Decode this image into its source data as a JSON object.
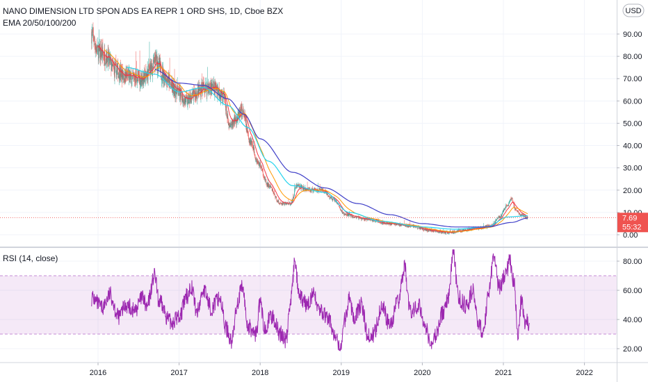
{
  "chart_data": [
    {
      "type": "candlestick",
      "title": "NANO DIMENSION LTD SPON ADS EA REPR 1 ORD SHS, 1D, Cboe BZX",
      "subtitle": "EMA 20/50/100/200",
      "currency": "USD",
      "x_ticks": [
        "2016",
        "2017",
        "2018",
        "2019",
        "2020",
        "2021",
        "2022"
      ],
      "y_ticks": [
        "0.00",
        "10.00",
        "20.00",
        "30.00",
        "40.00",
        "50.00",
        "60.00",
        "70.00",
        "80.00",
        "90.00"
      ],
      "ylim": [
        -3,
        100
      ],
      "last_price": "7.69",
      "countdown": "55:32",
      "colors": {
        "up": "#26a69a",
        "down": "#ef5350",
        "ema_fast": "#f23645",
        "ema_mid": "#ff9800",
        "ema_slow": "#22d3ee",
        "ema_200": "#3f3fc8",
        "price_line": "#ef5350"
      },
      "close_anchors": [
        {
          "x": 2015.92,
          "y": 90
        },
        {
          "x": 2016.0,
          "y": 82
        },
        {
          "x": 2016.1,
          "y": 80
        },
        {
          "x": 2016.2,
          "y": 74
        },
        {
          "x": 2016.35,
          "y": 71
        },
        {
          "x": 2016.55,
          "y": 70
        },
        {
          "x": 2016.65,
          "y": 74
        },
        {
          "x": 2016.72,
          "y": 78
        },
        {
          "x": 2016.8,
          "y": 72
        },
        {
          "x": 2016.95,
          "y": 65
        },
        {
          "x": 2017.1,
          "y": 60
        },
        {
          "x": 2017.2,
          "y": 63
        },
        {
          "x": 2017.3,
          "y": 66
        },
        {
          "x": 2017.45,
          "y": 66
        },
        {
          "x": 2017.55,
          "y": 62
        },
        {
          "x": 2017.62,
          "y": 48
        },
        {
          "x": 2017.7,
          "y": 52
        },
        {
          "x": 2017.78,
          "y": 55
        },
        {
          "x": 2017.88,
          "y": 42
        },
        {
          "x": 2017.98,
          "y": 32
        },
        {
          "x": 2018.1,
          "y": 22
        },
        {
          "x": 2018.25,
          "y": 14
        },
        {
          "x": 2018.38,
          "y": 14
        },
        {
          "x": 2018.45,
          "y": 22
        },
        {
          "x": 2018.6,
          "y": 20
        },
        {
          "x": 2018.75,
          "y": 20
        },
        {
          "x": 2018.9,
          "y": 16
        },
        {
          "x": 2019.05,
          "y": 9
        },
        {
          "x": 2019.3,
          "y": 7
        },
        {
          "x": 2019.6,
          "y": 5
        },
        {
          "x": 2019.85,
          "y": 4
        },
        {
          "x": 2020.1,
          "y": 2
        },
        {
          "x": 2020.3,
          "y": 1
        },
        {
          "x": 2020.5,
          "y": 2
        },
        {
          "x": 2020.7,
          "y": 3
        },
        {
          "x": 2020.85,
          "y": 4
        },
        {
          "x": 2020.95,
          "y": 8
        },
        {
          "x": 2021.05,
          "y": 13
        },
        {
          "x": 2021.1,
          "y": 16
        },
        {
          "x": 2021.15,
          "y": 11
        },
        {
          "x": 2021.22,
          "y": 9
        },
        {
          "x": 2021.3,
          "y": 7.69
        }
      ],
      "ema_200_anchors": [
        {
          "x": 2016.7,
          "y": 74
        },
        {
          "x": 2017.0,
          "y": 68
        },
        {
          "x": 2017.3,
          "y": 67
        },
        {
          "x": 2017.6,
          "y": 61
        },
        {
          "x": 2017.8,
          "y": 54
        },
        {
          "x": 2018.0,
          "y": 43
        },
        {
          "x": 2018.4,
          "y": 28
        },
        {
          "x": 2018.8,
          "y": 21
        },
        {
          "x": 2019.2,
          "y": 14
        },
        {
          "x": 2019.6,
          "y": 9
        },
        {
          "x": 2020.0,
          "y": 5
        },
        {
          "x": 2020.4,
          "y": 3.5
        },
        {
          "x": 2020.8,
          "y": 3.5
        },
        {
          "x": 2021.1,
          "y": 5.5
        },
        {
          "x": 2021.3,
          "y": 7.5
        }
      ],
      "ema_100_anchors": [
        {
          "x": 2016.35,
          "y": 75
        },
        {
          "x": 2016.7,
          "y": 72
        },
        {
          "x": 2017.0,
          "y": 64
        },
        {
          "x": 2017.3,
          "y": 66
        },
        {
          "x": 2017.6,
          "y": 58
        },
        {
          "x": 2017.85,
          "y": 48
        },
        {
          "x": 2018.1,
          "y": 33
        },
        {
          "x": 2018.4,
          "y": 22
        },
        {
          "x": 2018.8,
          "y": 19
        },
        {
          "x": 2019.1,
          "y": 10
        },
        {
          "x": 2019.5,
          "y": 6
        },
        {
          "x": 2020.0,
          "y": 3.5
        },
        {
          "x": 2020.4,
          "y": 2.5
        },
        {
          "x": 2020.8,
          "y": 3.5
        },
        {
          "x": 2021.05,
          "y": 8
        },
        {
          "x": 2021.3,
          "y": 8.5
        }
      ]
    },
    {
      "type": "line",
      "title": "RSI (14, close)",
      "y_ticks": [
        "20.00",
        "40.00",
        "60.00",
        "80.00"
      ],
      "ylim": [
        14,
        88
      ],
      "band": [
        30,
        70
      ],
      "color": "#9c27b0",
      "band_color": "#9c27b0",
      "rsi_anchors": [
        {
          "x": 2015.92,
          "y": 55
        },
        {
          "x": 2016.05,
          "y": 48
        },
        {
          "x": 2016.15,
          "y": 57
        },
        {
          "x": 2016.25,
          "y": 42
        },
        {
          "x": 2016.35,
          "y": 50
        },
        {
          "x": 2016.45,
          "y": 46
        },
        {
          "x": 2016.55,
          "y": 55
        },
        {
          "x": 2016.6,
          "y": 48
        },
        {
          "x": 2016.7,
          "y": 70
        },
        {
          "x": 2016.75,
          "y": 52
        },
        {
          "x": 2016.9,
          "y": 38
        },
        {
          "x": 2017.0,
          "y": 42
        },
        {
          "x": 2017.1,
          "y": 56
        },
        {
          "x": 2017.15,
          "y": 63
        },
        {
          "x": 2017.22,
          "y": 45
        },
        {
          "x": 2017.3,
          "y": 60
        },
        {
          "x": 2017.4,
          "y": 48
        },
        {
          "x": 2017.5,
          "y": 55
        },
        {
          "x": 2017.58,
          "y": 34
        },
        {
          "x": 2017.65,
          "y": 25
        },
        {
          "x": 2017.72,
          "y": 52
        },
        {
          "x": 2017.78,
          "y": 62
        },
        {
          "x": 2017.85,
          "y": 35
        },
        {
          "x": 2017.95,
          "y": 30
        },
        {
          "x": 2018.0,
          "y": 52
        },
        {
          "x": 2018.05,
          "y": 35
        },
        {
          "x": 2018.15,
          "y": 42
        },
        {
          "x": 2018.25,
          "y": 30
        },
        {
          "x": 2018.32,
          "y": 26
        },
        {
          "x": 2018.38,
          "y": 55
        },
        {
          "x": 2018.43,
          "y": 80
        },
        {
          "x": 2018.48,
          "y": 55
        },
        {
          "x": 2018.58,
          "y": 50
        },
        {
          "x": 2018.65,
          "y": 57
        },
        {
          "x": 2018.75,
          "y": 45
        },
        {
          "x": 2018.85,
          "y": 40
        },
        {
          "x": 2018.92,
          "y": 28
        },
        {
          "x": 2018.98,
          "y": 20
        },
        {
          "x": 2019.05,
          "y": 40
        },
        {
          "x": 2019.1,
          "y": 55
        },
        {
          "x": 2019.15,
          "y": 42
        },
        {
          "x": 2019.25,
          "y": 50
        },
        {
          "x": 2019.33,
          "y": 28
        },
        {
          "x": 2019.4,
          "y": 30
        },
        {
          "x": 2019.5,
          "y": 50
        },
        {
          "x": 2019.6,
          "y": 36
        },
        {
          "x": 2019.7,
          "y": 52
        },
        {
          "x": 2019.78,
          "y": 76
        },
        {
          "x": 2019.85,
          "y": 45
        },
        {
          "x": 2019.95,
          "y": 50
        },
        {
          "x": 2020.05,
          "y": 35
        },
        {
          "x": 2020.1,
          "y": 22
        },
        {
          "x": 2020.18,
          "y": 30
        },
        {
          "x": 2020.25,
          "y": 45
        },
        {
          "x": 2020.32,
          "y": 55
        },
        {
          "x": 2020.38,
          "y": 85
        },
        {
          "x": 2020.45,
          "y": 55
        },
        {
          "x": 2020.55,
          "y": 48
        },
        {
          "x": 2020.62,
          "y": 60
        },
        {
          "x": 2020.7,
          "y": 36
        },
        {
          "x": 2020.75,
          "y": 30
        },
        {
          "x": 2020.82,
          "y": 60
        },
        {
          "x": 2020.88,
          "y": 82
        },
        {
          "x": 2020.95,
          "y": 62
        },
        {
          "x": 2021.03,
          "y": 72
        },
        {
          "x": 2021.08,
          "y": 80
        },
        {
          "x": 2021.13,
          "y": 65
        },
        {
          "x": 2021.18,
          "y": 30
        },
        {
          "x": 2021.22,
          "y": 52
        },
        {
          "x": 2021.27,
          "y": 38
        },
        {
          "x": 2021.32,
          "y": 38
        }
      ]
    }
  ]
}
